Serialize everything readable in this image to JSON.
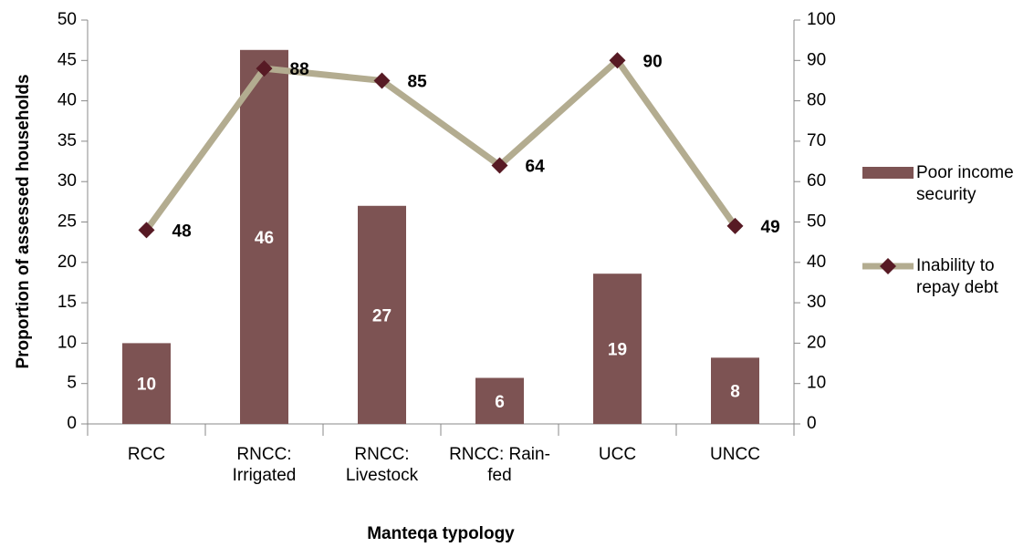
{
  "chart_data": {
    "type": "bar",
    "categories": [
      "RCC",
      "RNCC: Irrigated",
      "RNCC: Livestock",
      "RNCC: Rain-fed",
      "UCC",
      "UNCC"
    ],
    "series": [
      {
        "name": "Poor income security",
        "type": "bar",
        "color": "#7d5353",
        "values": [
          10,
          46.3,
          27,
          5.7,
          18.6,
          8.2
        ],
        "value_labels": [
          "10",
          "46",
          "27",
          "6",
          "19",
          "8"
        ]
      },
      {
        "name": "Inability to repay debt",
        "type": "line",
        "axis": "y2",
        "color": "#b3ac90",
        "marker_color": "#571a24",
        "values": [
          48,
          88,
          85,
          64,
          90,
          49
        ]
      }
    ],
    "ylabel": "Proportion of assessed households",
    "xlabel": "Manteqa typology",
    "ylim": [
      0,
      50
    ],
    "yticks": [
      0,
      5,
      10,
      15,
      20,
      25,
      30,
      35,
      40,
      45,
      50
    ],
    "y2lim": [
      0,
      100
    ],
    "y2ticks": [
      0,
      10,
      20,
      30,
      40,
      50,
      60,
      70,
      80,
      90,
      100
    ],
    "legend": "right"
  }
}
